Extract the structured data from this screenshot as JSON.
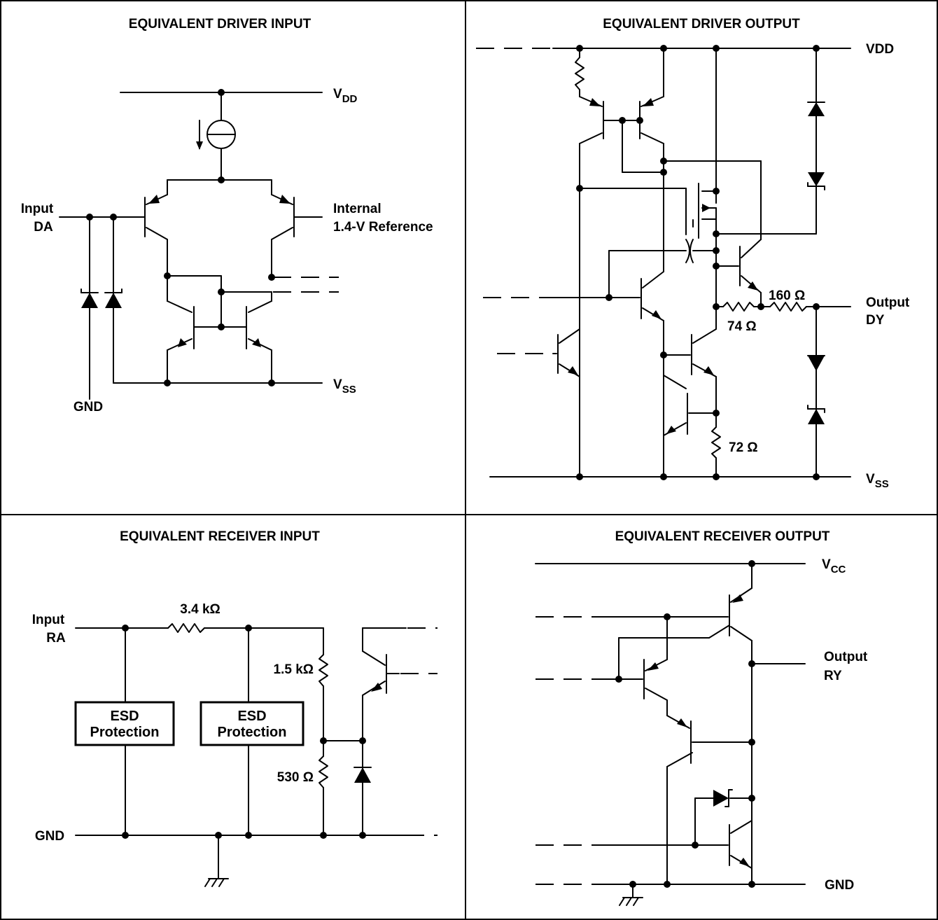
{
  "panels": {
    "driver_input": {
      "title": "EQUIVALENT DRIVER INPUT",
      "vdd_main": "V",
      "vdd_sub": "DD",
      "vss_main": "V",
      "vss_sub": "SS",
      "input_line1": "Input",
      "input_line2": "DA",
      "ref_line1": "Internal",
      "ref_line2": "1.4-V Reference",
      "gnd": "GND"
    },
    "driver_output": {
      "title": "EQUIVALENT DRIVER OUTPUT",
      "vdd": "VDD",
      "vss_main": "V",
      "vss_sub": "SS",
      "output_line1": "Output",
      "output_line2": "DY",
      "r160": "160 Ω",
      "r74": "74 Ω",
      "r72": "72 Ω"
    },
    "receiver_input": {
      "title": "EQUIVALENT RECEIVER INPUT",
      "input_line1": "Input",
      "input_line2": "RA",
      "r_series": "3.4 kΩ",
      "r_top": "1.5 kΩ",
      "r_bottom": "530 Ω",
      "esd1_line1": "ESD",
      "esd1_line2": "Protection",
      "esd2_line1": "ESD",
      "esd2_line2": "Protection",
      "gnd": "GND"
    },
    "receiver_output": {
      "title": "EQUIVALENT RECEIVER OUTPUT",
      "vcc_main": "V",
      "vcc_sub": "CC",
      "output_line1": "Output",
      "output_line2": "RY",
      "gnd": "GND"
    }
  }
}
